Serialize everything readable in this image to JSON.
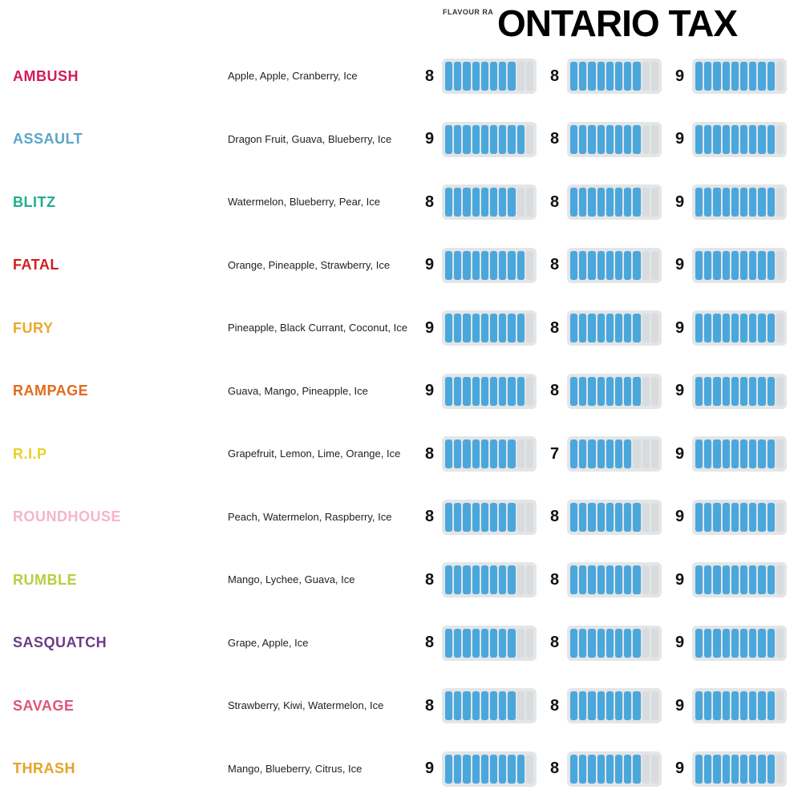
{
  "header_small": "FLAVOUR\nRA",
  "header_large": "ONTARIO TAX",
  "styles": {
    "bar_fill_color": "#4aa7dc",
    "bar_empty_color": "#d9dcde",
    "bar_track_color": "#e3e5e7",
    "max_score": 10,
    "name_fontsize": 18,
    "ing_fontsize": 13,
    "num_fontsize": 20
  },
  "flavours": [
    {
      "name": "AMBUSH",
      "color": "#d31a5b",
      "ingredients": "Apple, Apple, Cranberry, Ice",
      "ratings": [
        8,
        8,
        9
      ]
    },
    {
      "name": "ASSAULT",
      "color": "#5aa6c9",
      "ingredients": "Dragon Fruit, Guava, Blueberry, Ice",
      "ratings": [
        9,
        8,
        9
      ]
    },
    {
      "name": "BLITZ",
      "color": "#1eae8d",
      "ingredients": "Watermelon, Blueberry, Pear, Ice",
      "ratings": [
        8,
        8,
        9
      ]
    },
    {
      "name": "FATAL",
      "color": "#d01f1f",
      "ingredients": "Orange, Pineapple, Strawberry, Ice",
      "ratings": [
        9,
        8,
        9
      ]
    },
    {
      "name": "FURY",
      "color": "#e9a92a",
      "ingredients": "Pineapple, Black Currant, Coconut, Ice",
      "ratings": [
        9,
        8,
        9
      ]
    },
    {
      "name": "RAMPAGE",
      "color": "#e36a1c",
      "ingredients": "Guava, Mango, Pineapple, Ice",
      "ratings": [
        9,
        8,
        9
      ]
    },
    {
      "name": "R.I.P",
      "color": "#e6d22a",
      "ingredients": "Grapefruit, Lemon, Lime, Orange, Ice",
      "ratings": [
        8,
        7,
        9
      ]
    },
    {
      "name": "ROUNDHOUSE",
      "color": "#f5b4cf",
      "ingredients": "Peach, Watermelon, Raspberry, Ice",
      "ratings": [
        8,
        8,
        9
      ]
    },
    {
      "name": "RUMBLE",
      "color": "#b6cf3e",
      "ingredients": "Mango, Lychee, Guava, Ice",
      "ratings": [
        8,
        8,
        9
      ]
    },
    {
      "name": "SASQUATCH",
      "color": "#6b3b86",
      "ingredients": "Grape, Apple, Ice",
      "ratings": [
        8,
        8,
        9
      ]
    },
    {
      "name": "SAVAGE",
      "color": "#e05578",
      "ingredients": "Strawberry, Kiwi, Watermelon, Ice",
      "ratings": [
        8,
        8,
        9
      ]
    },
    {
      "name": "THRASH",
      "color": "#e6a326",
      "ingredients": "Mango, Blueberry, Citrus, Ice",
      "ratings": [
        9,
        8,
        9
      ]
    }
  ]
}
